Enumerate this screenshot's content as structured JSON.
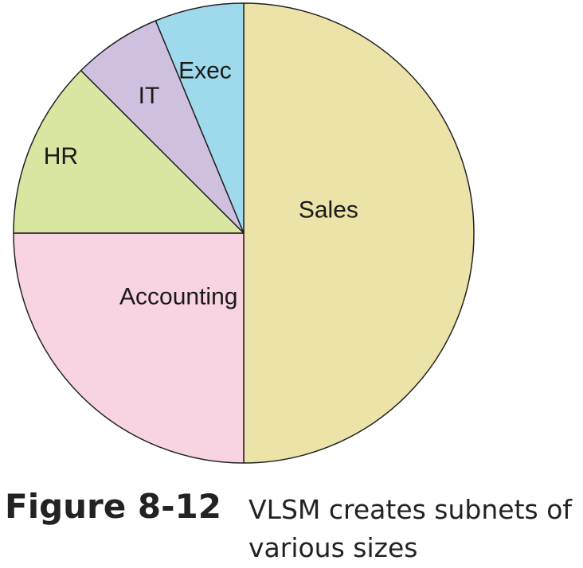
{
  "chart_data": {
    "type": "pie",
    "start_angle_deg": 0,
    "direction": "clockwise",
    "slices": [
      {
        "label": "Sales",
        "value": 50,
        "color": "#ebe3a8"
      },
      {
        "label": "Accounting",
        "value": 25,
        "color": "#f8d3e2"
      },
      {
        "label": "HR",
        "value": 12.5,
        "color": "#d9e6a1"
      },
      {
        "label": "IT",
        "value": 6.25,
        "color": "#cfc0e0"
      },
      {
        "label": "Exec",
        "value": 6.25,
        "color": "#9fd9ec"
      }
    ],
    "outline_color": "#222222"
  },
  "caption": {
    "figure_number": "Figure 8-12",
    "text": "VLSM creates subnets of various sizes"
  }
}
